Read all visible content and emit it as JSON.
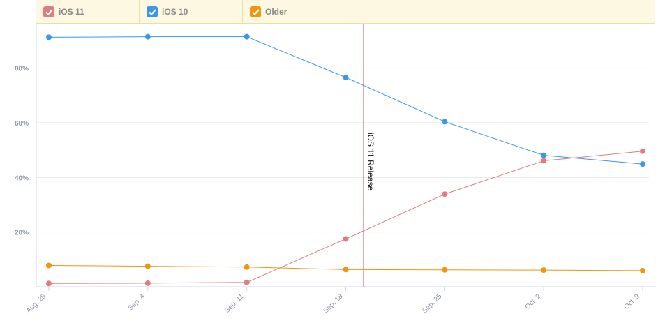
{
  "legend": {
    "items": [
      {
        "label": "iOS 11",
        "color": "#e07b82",
        "checked": true,
        "icon": "check-icon"
      },
      {
        "label": "iOS 10",
        "color": "#3b98e8",
        "checked": true,
        "icon": "check-icon"
      },
      {
        "label": "Older",
        "color": "#f0950e",
        "checked": true,
        "icon": "check-icon"
      }
    ]
  },
  "chart_data": {
    "type": "line",
    "categories": [
      "Aug. 28",
      "Sep. 4",
      "Sep. 11",
      "Sep. 18",
      "Sep. 25",
      "Oct. 2",
      "Oct. 9"
    ],
    "series": [
      {
        "name": "iOS 11",
        "color": "#e07b82",
        "values": [
          1.2,
          1.3,
          1.6,
          17.5,
          33.9,
          46.1,
          49.6
        ]
      },
      {
        "name": "iOS 10",
        "color": "#3b98e8",
        "values": [
          91.3,
          91.5,
          91.5,
          76.6,
          60.4,
          48.1,
          44.9
        ]
      },
      {
        "name": "Older",
        "color": "#f0950e",
        "values": [
          7.8,
          7.5,
          7.2,
          6.3,
          6.2,
          6.1,
          5.9
        ]
      }
    ],
    "yticks": [
      "20%",
      "40%",
      "60%",
      "80%"
    ],
    "ytick_values": [
      20,
      40,
      60,
      80
    ],
    "ylim": [
      0,
      96
    ],
    "annotation": {
      "label": "iOS 11 Release",
      "x_value": 3.18,
      "color": "#c9464f"
    },
    "grid": true,
    "legend_position": "top"
  }
}
